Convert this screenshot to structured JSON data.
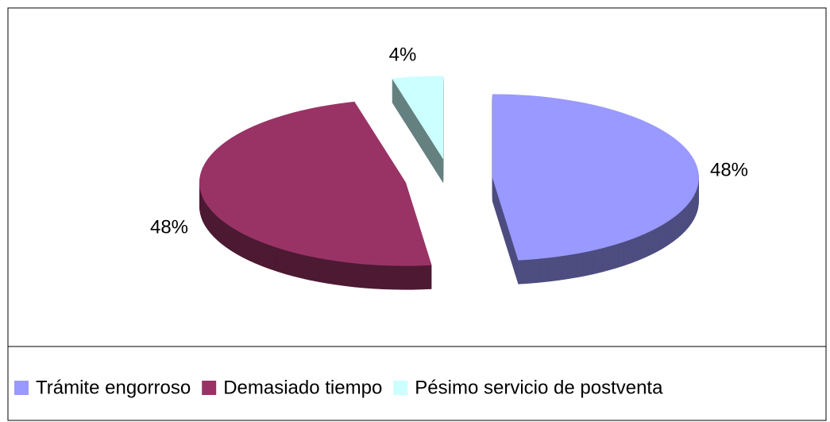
{
  "chart_data": {
    "type": "pie",
    "categories": [
      "Trámite engorroso",
      "Demasiado tiempo",
      "Pésimo servicio de postventa"
    ],
    "values": [
      48,
      48,
      4
    ],
    "value_labels": [
      "48%",
      "48%",
      "4%"
    ],
    "colors": [
      "#9999ff",
      "#993366",
      "#ccffff"
    ],
    "legend": "bottom"
  }
}
